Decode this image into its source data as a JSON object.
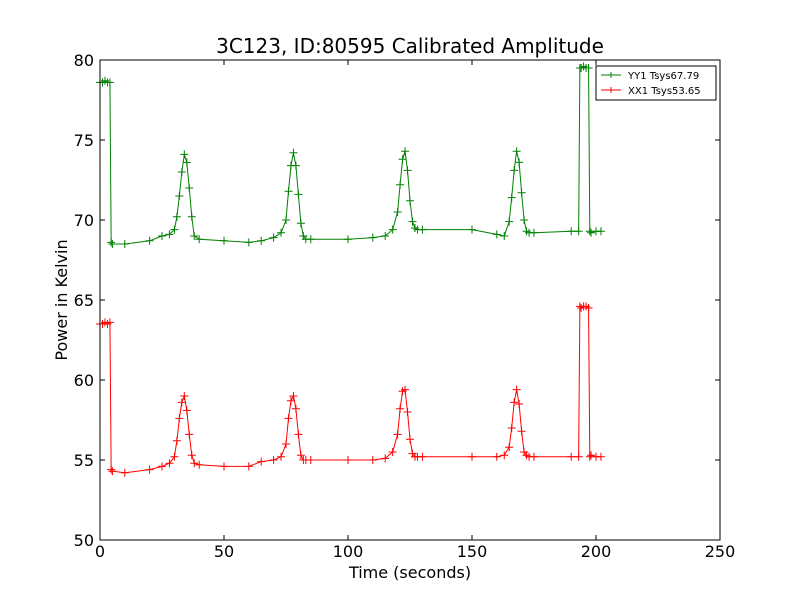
{
  "chart_data": {
    "type": "line",
    "title": "3C123, ID:80595 Calibrated Amplitude",
    "xlabel": "Time (seconds)",
    "ylabel": "Power in Kelvin",
    "xlim": [
      0,
      250
    ],
    "ylim": [
      50,
      80
    ],
    "xticks": [
      0,
      50,
      100,
      150,
      200,
      250
    ],
    "yticks": [
      50,
      55,
      60,
      65,
      70,
      75,
      80
    ],
    "grid": false,
    "legend_position": "top-right",
    "marker": "+",
    "series": [
      {
        "name": "YY1 Tsys67.79",
        "color": "#008000",
        "x": [
          0,
          1,
          2,
          3,
          4,
          4.5,
          5,
          10,
          20,
          25,
          28,
          30,
          31,
          32,
          33,
          34,
          35,
          36,
          37,
          38,
          40,
          50,
          60,
          65,
          70,
          73,
          75,
          76,
          77,
          78,
          79,
          80,
          81,
          82,
          83,
          85,
          100,
          110,
          115,
          118,
          120,
          121,
          122,
          123,
          124,
          125,
          126,
          127,
          128,
          130,
          150,
          160,
          163,
          165,
          166,
          167,
          168,
          169,
          170,
          171,
          172,
          173,
          175,
          190,
          193,
          193.5,
          194,
          195,
          196,
          197,
          197.5,
          198,
          200,
          202
        ],
        "y": [
          78.6,
          78.6,
          78.7,
          78.6,
          78.6,
          68.6,
          68.5,
          68.5,
          68.7,
          69.0,
          69.1,
          69.4,
          70.2,
          71.5,
          73.0,
          74.1,
          73.6,
          72.0,
          70.2,
          69.0,
          68.8,
          68.7,
          68.6,
          68.7,
          68.9,
          69.2,
          70.0,
          71.8,
          73.4,
          74.2,
          73.4,
          71.6,
          69.8,
          69.0,
          68.8,
          68.8,
          68.8,
          68.9,
          69.0,
          69.4,
          70.5,
          72.2,
          73.8,
          74.3,
          73.1,
          71.2,
          69.9,
          69.5,
          69.4,
          69.4,
          69.4,
          69.1,
          69.0,
          69.9,
          71.4,
          73.1,
          74.3,
          73.6,
          71.7,
          70.0,
          69.3,
          69.2,
          69.2,
          69.3,
          69.3,
          79.5,
          79.5,
          79.6,
          79.5,
          79.5,
          69.3,
          69.2,
          69.3,
          69.3
        ]
      },
      {
        "name": "XX1 Tsys53.65",
        "color": "#ff0000",
        "x": [
          0,
          1,
          2,
          3,
          4,
          4.5,
          5,
          10,
          20,
          25,
          28,
          30,
          31,
          32,
          33,
          34,
          35,
          36,
          37,
          38,
          40,
          50,
          60,
          65,
          70,
          73,
          75,
          76,
          77,
          78,
          79,
          80,
          81,
          82,
          83,
          85,
          100,
          110,
          115,
          118,
          120,
          121,
          122,
          123,
          124,
          125,
          126,
          127,
          128,
          130,
          150,
          160,
          163,
          165,
          166,
          167,
          168,
          169,
          170,
          171,
          172,
          173,
          175,
          190,
          193,
          193.5,
          194,
          195,
          196,
          197,
          197.5,
          198,
          200,
          202
        ],
        "y": [
          63.5,
          63.5,
          63.6,
          63.5,
          63.6,
          54.4,
          54.3,
          54.2,
          54.4,
          54.6,
          54.8,
          55.2,
          56.2,
          57.6,
          58.6,
          59.0,
          58.1,
          56.6,
          55.3,
          54.8,
          54.7,
          54.6,
          54.6,
          54.9,
          55.0,
          55.2,
          56.0,
          57.6,
          58.7,
          59.0,
          58.2,
          56.6,
          55.3,
          55.0,
          55.0,
          55.0,
          55.0,
          55.0,
          55.1,
          55.5,
          56.6,
          58.2,
          59.3,
          59.4,
          58.0,
          56.3,
          55.4,
          55.2,
          55.2,
          55.2,
          55.2,
          55.2,
          55.3,
          55.8,
          57.0,
          58.6,
          59.4,
          58.5,
          56.8,
          55.5,
          55.3,
          55.2,
          55.2,
          55.2,
          55.2,
          64.6,
          64.5,
          64.6,
          64.6,
          64.5,
          55.2,
          55.3,
          55.2,
          55.2
        ]
      }
    ]
  }
}
